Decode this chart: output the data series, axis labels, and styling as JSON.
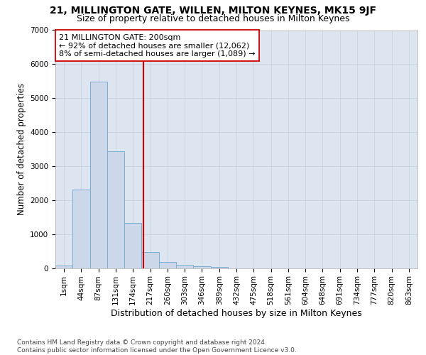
{
  "title1": "21, MILLINGTON GATE, WILLEN, MILTON KEYNES, MK15 9JF",
  "title2": "Size of property relative to detached houses in Milton Keynes",
  "xlabel": "Distribution of detached houses by size in Milton Keynes",
  "ylabel": "Number of detached properties",
  "footer1": "Contains HM Land Registry data © Crown copyright and database right 2024.",
  "footer2": "Contains public sector information licensed under the Open Government Licence v3.0.",
  "categories": [
    "1sqm",
    "44sqm",
    "87sqm",
    "131sqm",
    "174sqm",
    "217sqm",
    "260sqm",
    "303sqm",
    "346sqm",
    "389sqm",
    "432sqm",
    "475sqm",
    "518sqm",
    "561sqm",
    "604sqm",
    "648sqm",
    "691sqm",
    "734sqm",
    "777sqm",
    "820sqm",
    "863sqm"
  ],
  "values": [
    80,
    2300,
    5480,
    3430,
    1330,
    460,
    170,
    100,
    60,
    30,
    0,
    0,
    0,
    0,
    0,
    0,
    0,
    0,
    0,
    0,
    0
  ],
  "bar_color": "#ccd8ea",
  "bar_edge_color": "#7bafd4",
  "vline_color": "#cc0000",
  "annotation_text": "21 MILLINGTON GATE: 200sqm\n← 92% of detached houses are smaller (12,062)\n8% of semi-detached houses are larger (1,089) →",
  "annotation_box_facecolor": "#ffffff",
  "annotation_box_edgecolor": "#cc0000",
  "ylim": [
    0,
    7000
  ],
  "grid_color": "#c8d4e4",
  "background_color": "#dde5f0",
  "title1_fontsize": 10,
  "title2_fontsize": 9,
  "xlabel_fontsize": 9,
  "ylabel_fontsize": 8.5,
  "annotation_fontsize": 8,
  "tick_fontsize": 7.5,
  "footer_fontsize": 6.5
}
